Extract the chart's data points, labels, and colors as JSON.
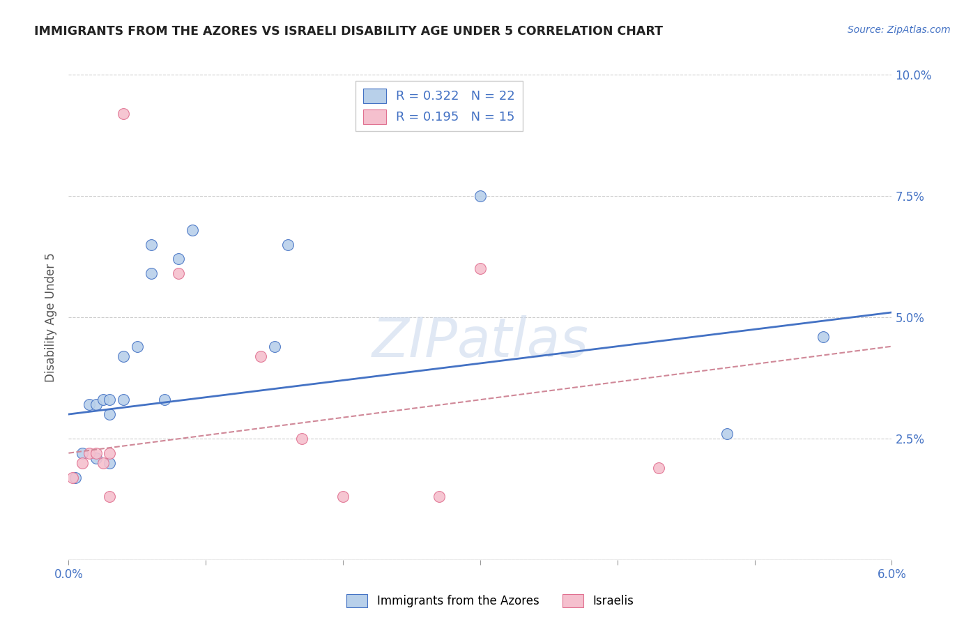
{
  "title": "IMMIGRANTS FROM THE AZORES VS ISRAELI DISABILITY AGE UNDER 5 CORRELATION CHART",
  "source": "Source: ZipAtlas.com",
  "ylabel": "Disability Age Under 5",
  "xlim": [
    0.0,
    0.06
  ],
  "ylim": [
    0.0,
    0.1
  ],
  "xticks": [
    0.0,
    0.01,
    0.02,
    0.03,
    0.04,
    0.05,
    0.06
  ],
  "yticks": [
    0.0,
    0.025,
    0.05,
    0.075,
    0.1
  ],
  "ytick_labels": [
    "",
    "2.5%",
    "5.0%",
    "7.5%",
    "10.0%"
  ],
  "blue_R": 0.322,
  "blue_N": 22,
  "pink_R": 0.195,
  "pink_N": 15,
  "blue_color": "#b8d0ea",
  "pink_color": "#f5c0ce",
  "blue_edge_color": "#4472c4",
  "pink_edge_color": "#e07090",
  "blue_line_color": "#4472c4",
  "pink_line_color": "#d08898",
  "watermark": "ZIPatlas",
  "blue_points_x": [
    0.0005,
    0.001,
    0.0015,
    0.002,
    0.002,
    0.0025,
    0.003,
    0.003,
    0.003,
    0.004,
    0.004,
    0.005,
    0.006,
    0.006,
    0.007,
    0.008,
    0.009,
    0.015,
    0.016,
    0.03,
    0.048,
    0.055
  ],
  "blue_points_y": [
    0.017,
    0.022,
    0.032,
    0.032,
    0.021,
    0.033,
    0.033,
    0.02,
    0.03,
    0.033,
    0.042,
    0.044,
    0.065,
    0.059,
    0.033,
    0.062,
    0.068,
    0.044,
    0.065,
    0.075,
    0.026,
    0.046
  ],
  "pink_points_x": [
    0.0003,
    0.001,
    0.0015,
    0.002,
    0.0025,
    0.003,
    0.003,
    0.004,
    0.008,
    0.014,
    0.017,
    0.02,
    0.027,
    0.03,
    0.043
  ],
  "pink_points_y": [
    0.017,
    0.02,
    0.022,
    0.022,
    0.02,
    0.022,
    0.013,
    0.092,
    0.059,
    0.042,
    0.025,
    0.013,
    0.013,
    0.06,
    0.019
  ],
  "blue_line_x0": 0.0,
  "blue_line_y0": 0.03,
  "blue_line_x1": 0.06,
  "blue_line_y1": 0.051,
  "pink_line_x0": 0.0,
  "pink_line_y0": 0.022,
  "pink_line_x1": 0.06,
  "pink_line_y1": 0.044
}
